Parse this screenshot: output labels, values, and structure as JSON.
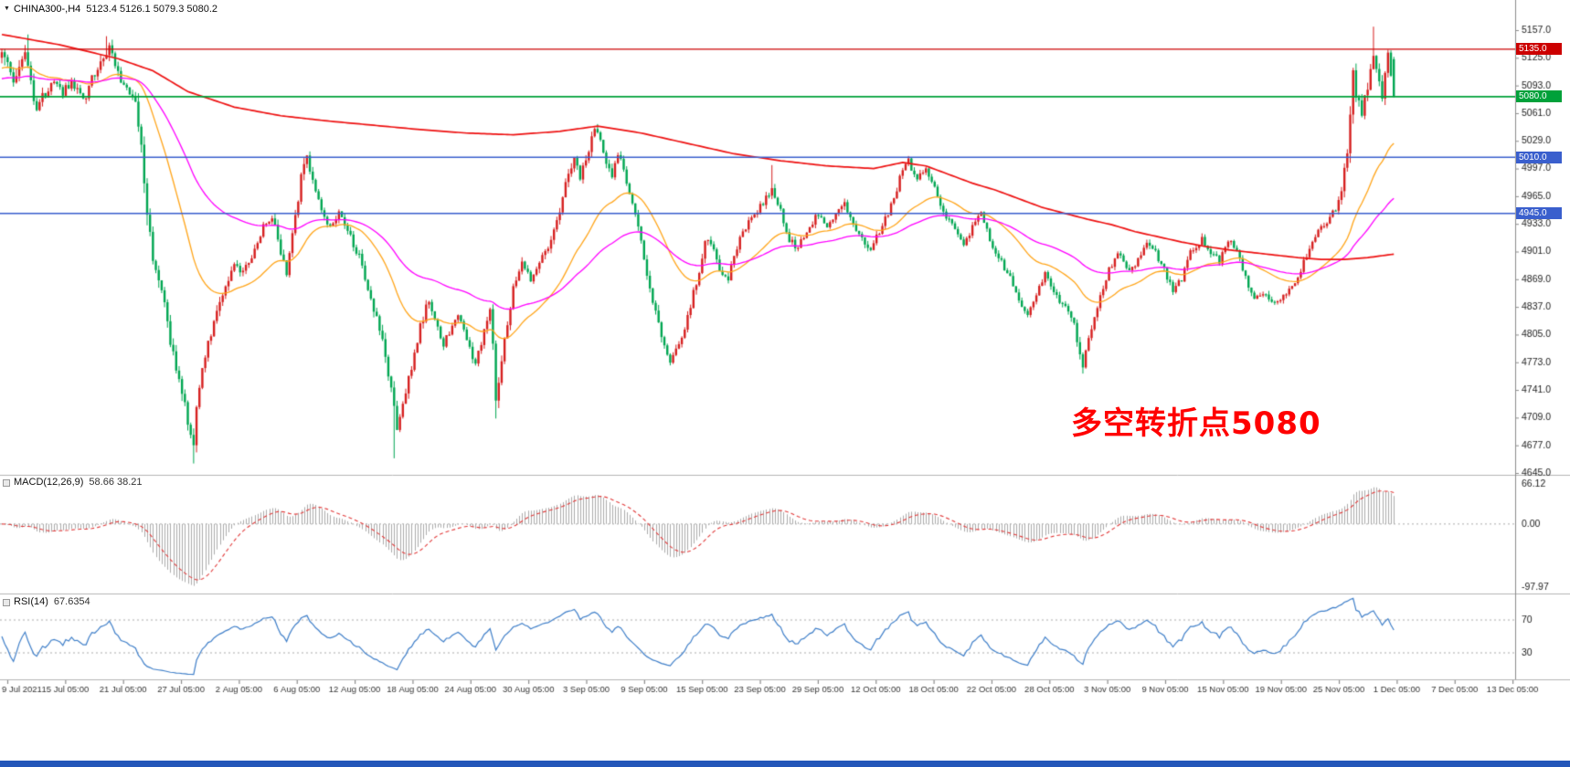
{
  "chart_header": {
    "menu_icon": "▼",
    "title": "CHINA300-,H4",
    "ohlc_text": "5123.4 5126.1 5079.3 5080.2"
  },
  "annotation": {
    "text": "多空转折点5080",
    "color": "#FF0000"
  },
  "indicators": {
    "macd": {
      "label": "MACD(12,26,9)",
      "values": "58.66 38.21",
      "axis_max": "66.12",
      "axis_zero": "0.00",
      "axis_min": "-97.97"
    },
    "rsi": {
      "label": "RSI(14)",
      "value": "67.6354",
      "levels": [
        "70",
        "30"
      ]
    }
  },
  "chart_data": {
    "type": "candlestick",
    "symbol": "CHINA300-",
    "timeframe": "H4",
    "bar_count": 480,
    "last_bar": {
      "o": 5123.4,
      "h": 5126.1,
      "l": 5079.3,
      "c": 5080.2
    },
    "y_ticks": [
      5157,
      5125,
      5093,
      5061,
      5029,
      4997,
      4965,
      4933,
      4901,
      4869,
      4837,
      4805,
      4773,
      4741,
      4709,
      4677,
      4645
    ],
    "x_labels": [
      "9 Jul 2021",
      "15 Jul 05:00",
      "21 Jul 05:00",
      "27 Jul 05:00",
      "2 Aug 05:00",
      "6 Aug 05:00",
      "12 Aug 05:00",
      "18 Aug 05:00",
      "24 Aug 05:00",
      "30 Aug 05:00",
      "3 Sep 05:00",
      "9 Sep 05:00",
      "15 Sep 05:00",
      "23 Sep 05:00",
      "29 Sep 05:00",
      "12 Oct 05:00",
      "18 Oct 05:00",
      "22 Oct 05:00",
      "28 Oct 05:00",
      "3 Nov 05:00",
      "9 Nov 05:00",
      "15 Nov 05:00",
      "19 Nov 05:00",
      "25 Nov 05:00",
      "1 Dec 05:00",
      "7 Dec 05:00",
      "13 Dec 05:00"
    ],
    "h_lines": [
      {
        "price": 5135.0,
        "label": "5135.0",
        "color": "#CC0000",
        "width": 1.3
      },
      {
        "price": 5080.0,
        "label": "5080.0",
        "color": "#00A13A",
        "width": 1.8
      },
      {
        "price": 5010.0,
        "label": "5010.0",
        "color": "#3A5FCD",
        "width": 1.6
      },
      {
        "price": 4945.0,
        "label": "4945.0",
        "color": "#3A5FCD",
        "width": 1.6
      }
    ],
    "price_anchors": [
      [
        0,
        5125,
        18
      ],
      [
        4,
        5100,
        18
      ],
      [
        8,
        5130,
        16
      ],
      [
        12,
        5065,
        18
      ],
      [
        15,
        5085,
        14
      ],
      [
        18,
        5100,
        12
      ],
      [
        21,
        5085,
        12
      ],
      [
        24,
        5095,
        12
      ],
      [
        28,
        5075,
        14
      ],
      [
        31,
        5100,
        14
      ],
      [
        34,
        5118,
        16
      ],
      [
        37,
        5138,
        14
      ],
      [
        40,
        5108,
        12
      ],
      [
        43,
        5088,
        10
      ],
      [
        46,
        5072,
        12
      ],
      [
        48,
        5020,
        26
      ],
      [
        50,
        4935,
        26
      ],
      [
        52,
        4895,
        18
      ],
      [
        54,
        4868,
        16
      ],
      [
        56,
        4838,
        16
      ],
      [
        58,
        4800,
        16
      ],
      [
        60,
        4760,
        18
      ],
      [
        62,
        4735,
        16
      ],
      [
        64,
        4706,
        16
      ],
      [
        66,
        4682,
        18
      ],
      [
        67,
        4728,
        16
      ],
      [
        69,
        4768,
        12
      ],
      [
        71,
        4796,
        12
      ],
      [
        74,
        4828,
        12
      ],
      [
        77,
        4862,
        10
      ],
      [
        80,
        4886,
        10
      ],
      [
        83,
        4878,
        10
      ],
      [
        86,
        4895,
        10
      ],
      [
        90,
        4930,
        10
      ],
      [
        93,
        4942,
        10
      ],
      [
        96,
        4902,
        12
      ],
      [
        98,
        4878,
        10
      ],
      [
        101,
        4938,
        12
      ],
      [
        103,
        4988,
        14
      ],
      [
        105,
        5008,
        12
      ],
      [
        107,
        4985,
        10
      ],
      [
        110,
        4945,
        10
      ],
      [
        113,
        4928,
        10
      ],
      [
        116,
        4945,
        10
      ],
      [
        119,
        4925,
        10
      ],
      [
        123,
        4895,
        10
      ],
      [
        126,
        4855,
        12
      ],
      [
        129,
        4825,
        12
      ],
      [
        132,
        4780,
        14
      ],
      [
        135,
        4715,
        18
      ],
      [
        136,
        4695,
        16
      ],
      [
        138,
        4725,
        14
      ],
      [
        142,
        4780,
        12
      ],
      [
        144,
        4815,
        12
      ],
      [
        147,
        4845,
        10
      ],
      [
        149,
        4820,
        10
      ],
      [
        152,
        4795,
        10
      ],
      [
        154,
        4805,
        10
      ],
      [
        157,
        4830,
        10
      ],
      [
        160,
        4795,
        10
      ],
      [
        163,
        4770,
        10
      ],
      [
        166,
        4810,
        10
      ],
      [
        168,
        4838,
        10
      ],
      [
        169,
        4790,
        14
      ],
      [
        170,
        4726,
        18
      ],
      [
        172,
        4775,
        14
      ],
      [
        174,
        4820,
        12
      ],
      [
        176,
        4858,
        10
      ],
      [
        179,
        4885,
        10
      ],
      [
        182,
        4868,
        10
      ],
      [
        186,
        4895,
        10
      ],
      [
        189,
        4915,
        10
      ],
      [
        192,
        4945,
        10
      ],
      [
        194,
        4985,
        12
      ],
      [
        197,
        5008,
        12
      ],
      [
        199,
        4988,
        10
      ],
      [
        202,
        5020,
        12
      ],
      [
        204,
        5045,
        12
      ],
      [
        206,
        5028,
        10
      ],
      [
        208,
        5000,
        10
      ],
      [
        210,
        4990,
        10
      ],
      [
        212,
        5015,
        10
      ],
      [
        214,
        4995,
        10
      ],
      [
        217,
        4955,
        10
      ],
      [
        220,
        4915,
        10
      ],
      [
        222,
        4870,
        12
      ],
      [
        225,
        4835,
        12
      ],
      [
        227,
        4800,
        12
      ],
      [
        230,
        4768,
        12
      ],
      [
        232,
        4790,
        10
      ],
      [
        235,
        4812,
        10
      ],
      [
        237,
        4840,
        10
      ],
      [
        240,
        4880,
        12
      ],
      [
        242,
        4915,
        10
      ],
      [
        245,
        4905,
        10
      ],
      [
        247,
        4875,
        10
      ],
      [
        250,
        4870,
        8
      ],
      [
        252,
        4895,
        8
      ],
      [
        255,
        4925,
        8
      ],
      [
        259,
        4945,
        8
      ],
      [
        262,
        4958,
        8
      ],
      [
        265,
        4972,
        10
      ],
      [
        268,
        4948,
        8
      ],
      [
        271,
        4915,
        8
      ],
      [
        274,
        4905,
        8
      ],
      [
        277,
        4925,
        8
      ],
      [
        281,
        4945,
        8
      ],
      [
        284,
        4930,
        8
      ],
      [
        287,
        4945,
        8
      ],
      [
        290,
        4955,
        8
      ],
      [
        293,
        4935,
        8
      ],
      [
        296,
        4915,
        8
      ],
      [
        299,
        4905,
        8
      ],
      [
        303,
        4930,
        8
      ],
      [
        306,
        4955,
        10
      ],
      [
        309,
        4985,
        10
      ],
      [
        312,
        5005,
        10
      ],
      [
        315,
        4985,
        8
      ],
      [
        318,
        4995,
        8
      ],
      [
        321,
        4975,
        8
      ],
      [
        325,
        4940,
        8
      ],
      [
        328,
        4925,
        8
      ],
      [
        331,
        4905,
        8
      ],
      [
        334,
        4930,
        8
      ],
      [
        337,
        4945,
        8
      ],
      [
        340,
        4915,
        8
      ],
      [
        343,
        4895,
        8
      ],
      [
        347,
        4870,
        8
      ],
      [
        350,
        4845,
        8
      ],
      [
        353,
        4825,
        8
      ],
      [
        356,
        4850,
        8
      ],
      [
        359,
        4875,
        8
      ],
      [
        362,
        4855,
        8
      ],
      [
        366,
        4835,
        8
      ],
      [
        369,
        4820,
        10
      ],
      [
        370,
        4792,
        14
      ],
      [
        372,
        4770,
        14
      ],
      [
        375,
        4815,
        10
      ],
      [
        378,
        4850,
        8
      ],
      [
        381,
        4880,
        8
      ],
      [
        384,
        4900,
        8
      ],
      [
        387,
        4880,
        8
      ],
      [
        391,
        4890,
        8
      ],
      [
        394,
        4910,
        8
      ],
      [
        397,
        4900,
        8
      ],
      [
        400,
        4880,
        8
      ],
      [
        403,
        4855,
        8
      ],
      [
        406,
        4870,
        8
      ],
      [
        409,
        4900,
        8
      ],
      [
        413,
        4915,
        8
      ],
      [
        416,
        4900,
        8
      ],
      [
        419,
        4890,
        8
      ],
      [
        422,
        4915,
        8
      ],
      [
        425,
        4900,
        8
      ],
      [
        428,
        4870,
        8
      ],
      [
        431,
        4845,
        8
      ],
      [
        434,
        4855,
        8
      ],
      [
        438,
        4840,
        8
      ],
      [
        441,
        4850,
        8
      ],
      [
        444,
        4862,
        8
      ],
      [
        447,
        4880,
        8
      ],
      [
        450,
        4905,
        8
      ],
      [
        453,
        4925,
        8
      ],
      [
        456,
        4935,
        8
      ],
      [
        459,
        4950,
        10
      ],
      [
        461,
        4975,
        12
      ],
      [
        463,
        5010,
        16
      ],
      [
        465,
        5115,
        26
      ],
      [
        466,
        5085,
        16
      ],
      [
        468,
        5060,
        14
      ],
      [
        470,
        5090,
        16
      ],
      [
        472,
        5128,
        18
      ],
      [
        473,
        5108,
        14
      ],
      [
        475,
        5082,
        14
      ],
      [
        476,
        5108,
        14
      ],
      [
        477,
        5128,
        12
      ],
      [
        479,
        5080,
        6
      ]
    ],
    "spikes": [
      {
        "i": 9,
        "high": 5152
      },
      {
        "i": 36,
        "high": 5150
      },
      {
        "i": 66,
        "low": 4656
      },
      {
        "i": 135,
        "low": 4662
      },
      {
        "i": 170,
        "low": 4708
      },
      {
        "i": 265,
        "high": 5001
      },
      {
        "i": 472,
        "high": 5161
      }
    ],
    "ma_fast": {
      "period": 34,
      "seed": 5112,
      "color_key": "ma_orange"
    },
    "ma_mid": {
      "period": 80,
      "seed": 5100,
      "color_key": "ma_magenta"
    },
    "ma_red_anchors": [
      [
        0,
        5152
      ],
      [
        20,
        5140
      ],
      [
        40,
        5124
      ],
      [
        52,
        5110
      ],
      [
        64,
        5086
      ],
      [
        80,
        5068
      ],
      [
        96,
        5058
      ],
      [
        112,
        5052
      ],
      [
        128,
        5047
      ],
      [
        144,
        5042
      ],
      [
        160,
        5038
      ],
      [
        176,
        5036
      ],
      [
        192,
        5040
      ],
      [
        205,
        5046
      ],
      [
        220,
        5038
      ],
      [
        236,
        5026
      ],
      [
        252,
        5014
      ],
      [
        268,
        5006
      ],
      [
        284,
        5000
      ],
      [
        300,
        4997
      ],
      [
        310,
        5004
      ],
      [
        318,
        5000
      ],
      [
        326,
        4990
      ],
      [
        334,
        4980
      ],
      [
        342,
        4972
      ],
      [
        350,
        4962
      ],
      [
        358,
        4952
      ],
      [
        366,
        4945
      ],
      [
        374,
        4938
      ],
      [
        382,
        4932
      ],
      [
        390,
        4924
      ],
      [
        398,
        4918
      ],
      [
        406,
        4912
      ],
      [
        414,
        4907
      ],
      [
        422,
        4903
      ],
      [
        430,
        4900
      ],
      [
        438,
        4897
      ],
      [
        446,
        4894
      ],
      [
        454,
        4892
      ],
      [
        462,
        4892
      ],
      [
        470,
        4894
      ],
      [
        479,
        4898
      ]
    ],
    "colors": {
      "candle_up": "#D61F1F",
      "candle_down": "#00A651",
      "ma_red": "#EE1111",
      "ma_magenta": "#FF00FF",
      "ma_orange": "#FFA519",
      "macd_hist": "#ABABAB",
      "macd_signal": "#E23A3A",
      "rsi_line": "#3F7FC9",
      "separator": "#B3B3B3",
      "axis_line": "#8C8C8C",
      "axis_text": "#1A1A1A",
      "time_text": "#333333",
      "level_line": "#AAAAAA",
      "bottom_bar": "#2456B9"
    }
  }
}
